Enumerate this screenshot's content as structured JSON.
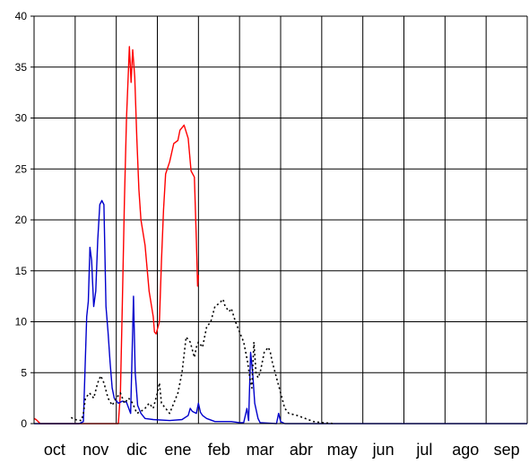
{
  "chart_data": {
    "type": "line",
    "categories": [
      "oct",
      "nov",
      "dic",
      "ene",
      "feb",
      "mar",
      "abr",
      "may",
      "jun",
      "jul",
      "ago",
      "sep"
    ],
    "y_ticks": [
      "0",
      "5",
      "10",
      "15",
      "20",
      "25",
      "30",
      "35",
      "40"
    ],
    "ylim": [
      0,
      40
    ],
    "xlim": [
      0,
      12
    ],
    "grid": true,
    "legend": "none",
    "series": [
      {
        "color": "#ff0000",
        "style": "solid",
        "points": [
          [
            0.0,
            0.5
          ],
          [
            0.05,
            0.4
          ],
          [
            0.1,
            0.2
          ],
          [
            0.15,
            0.0
          ],
          [
            2.05,
            0.0
          ],
          [
            2.1,
            3.0
          ],
          [
            2.15,
            12.0
          ],
          [
            2.2,
            22.0
          ],
          [
            2.25,
            30.0
          ],
          [
            2.32,
            37.0
          ],
          [
            2.36,
            33.5
          ],
          [
            2.4,
            36.7
          ],
          [
            2.45,
            34.0
          ],
          [
            2.5,
            28.0
          ],
          [
            2.55,
            23.0
          ],
          [
            2.6,
            20.0
          ],
          [
            2.7,
            17.5
          ],
          [
            2.8,
            13.0
          ],
          [
            2.9,
            10.5
          ],
          [
            2.93,
            9.0
          ],
          [
            2.97,
            8.8
          ],
          [
            3.05,
            10.0
          ],
          [
            3.1,
            16.0
          ],
          [
            3.15,
            21.0
          ],
          [
            3.2,
            24.5
          ],
          [
            3.3,
            25.7
          ],
          [
            3.4,
            27.5
          ],
          [
            3.5,
            27.8
          ],
          [
            3.55,
            28.8
          ],
          [
            3.65,
            29.3
          ],
          [
            3.75,
            28.0
          ],
          [
            3.82,
            24.8
          ],
          [
            3.9,
            24.2
          ],
          [
            3.95,
            18.0
          ],
          [
            3.98,
            13.5
          ],
          [
            4.0,
            14.6
          ]
        ]
      },
      {
        "color": "#0000cc",
        "style": "solid",
        "points": [
          [
            0.0,
            0.0
          ],
          [
            1.1,
            0.0
          ],
          [
            1.2,
            0.2
          ],
          [
            1.28,
            10.5
          ],
          [
            1.32,
            12.0
          ],
          [
            1.36,
            17.3
          ],
          [
            1.4,
            16.0
          ],
          [
            1.45,
            11.5
          ],
          [
            1.5,
            13.0
          ],
          [
            1.55,
            18.0
          ],
          [
            1.6,
            21.5
          ],
          [
            1.65,
            21.9
          ],
          [
            1.7,
            21.5
          ],
          [
            1.75,
            11.5
          ],
          [
            1.8,
            9.0
          ],
          [
            1.85,
            6.0
          ],
          [
            1.9,
            3.5
          ],
          [
            1.95,
            2.5
          ],
          [
            2.05,
            2.0
          ],
          [
            2.15,
            2.2
          ],
          [
            2.25,
            2.1
          ],
          [
            2.35,
            1.0
          ],
          [
            2.42,
            12.5
          ],
          [
            2.46,
            5.0
          ],
          [
            2.52,
            1.8
          ],
          [
            2.6,
            1.0
          ],
          [
            2.7,
            0.5
          ],
          [
            2.9,
            0.4
          ],
          [
            3.3,
            0.3
          ],
          [
            3.6,
            0.4
          ],
          [
            3.75,
            0.8
          ],
          [
            3.8,
            1.5
          ],
          [
            3.85,
            1.2
          ],
          [
            3.95,
            1.0
          ],
          [
            4.0,
            2.0
          ],
          [
            4.05,
            1.1
          ],
          [
            4.1,
            0.8
          ],
          [
            4.2,
            0.5
          ],
          [
            4.4,
            0.2
          ],
          [
            4.8,
            0.2
          ],
          [
            5.0,
            0.1
          ],
          [
            5.1,
            0.1
          ],
          [
            5.18,
            1.5
          ],
          [
            5.22,
            0.3
          ],
          [
            5.27,
            7.0
          ],
          [
            5.32,
            5.0
          ],
          [
            5.37,
            2.0
          ],
          [
            5.45,
            0.5
          ],
          [
            5.5,
            0.1
          ],
          [
            5.9,
            0.0
          ],
          [
            5.95,
            1.0
          ],
          [
            6.0,
            0.2
          ],
          [
            6.1,
            0.0
          ],
          [
            12.0,
            0.0
          ]
        ]
      },
      {
        "color": "#000000",
        "style": "dotted",
        "points": [
          [
            0.9,
            0.6
          ],
          [
            1.0,
            0.4
          ],
          [
            1.15,
            0.3
          ],
          [
            1.2,
            1.0
          ],
          [
            1.25,
            2.5
          ],
          [
            1.35,
            3.0
          ],
          [
            1.45,
            2.5
          ],
          [
            1.55,
            4.0
          ],
          [
            1.62,
            4.7
          ],
          [
            1.7,
            4.0
          ],
          [
            1.8,
            2.5
          ],
          [
            1.9,
            1.8
          ],
          [
            2.0,
            2.5
          ],
          [
            2.1,
            3.0
          ],
          [
            2.2,
            2.0
          ],
          [
            2.3,
            2.5
          ],
          [
            2.4,
            2.0
          ],
          [
            2.5,
            1.0
          ],
          [
            2.6,
            1.2
          ],
          [
            2.7,
            1.5
          ],
          [
            2.8,
            2.0
          ],
          [
            2.9,
            1.5
          ],
          [
            3.0,
            3.0
          ],
          [
            3.05,
            4.0
          ],
          [
            3.1,
            2.0
          ],
          [
            3.2,
            1.5
          ],
          [
            3.3,
            1.0
          ],
          [
            3.4,
            2.0
          ],
          [
            3.5,
            3.0
          ],
          [
            3.6,
            5.0
          ],
          [
            3.7,
            8.5
          ],
          [
            3.8,
            8.0
          ],
          [
            3.9,
            6.5
          ],
          [
            3.95,
            7.5
          ],
          [
            4.0,
            8.0
          ],
          [
            4.1,
            7.5
          ],
          [
            4.2,
            9.5
          ],
          [
            4.3,
            10.0
          ],
          [
            4.4,
            11.5
          ],
          [
            4.5,
            11.8
          ],
          [
            4.6,
            12.2
          ],
          [
            4.65,
            11.5
          ],
          [
            4.75,
            11.0
          ],
          [
            4.8,
            11.3
          ],
          [
            4.9,
            10.0
          ],
          [
            5.0,
            9.0
          ],
          [
            5.1,
            8.0
          ],
          [
            5.2,
            6.0
          ],
          [
            5.25,
            4.5
          ],
          [
            5.3,
            3.5
          ],
          [
            5.35,
            8.0
          ],
          [
            5.4,
            5.0
          ],
          [
            5.45,
            4.5
          ],
          [
            5.5,
            5.0
          ],
          [
            5.6,
            7.0
          ],
          [
            5.7,
            7.5
          ],
          [
            5.75,
            7.0
          ],
          [
            5.8,
            6.0
          ],
          [
            5.9,
            4.5
          ],
          [
            6.0,
            3.0
          ],
          [
            6.1,
            1.5
          ],
          [
            6.2,
            1.0
          ],
          [
            6.4,
            0.8
          ],
          [
            6.6,
            0.5
          ],
          [
            6.8,
            0.2
          ],
          [
            7.0,
            0.1
          ],
          [
            7.3,
            0.0
          ]
        ]
      }
    ]
  }
}
